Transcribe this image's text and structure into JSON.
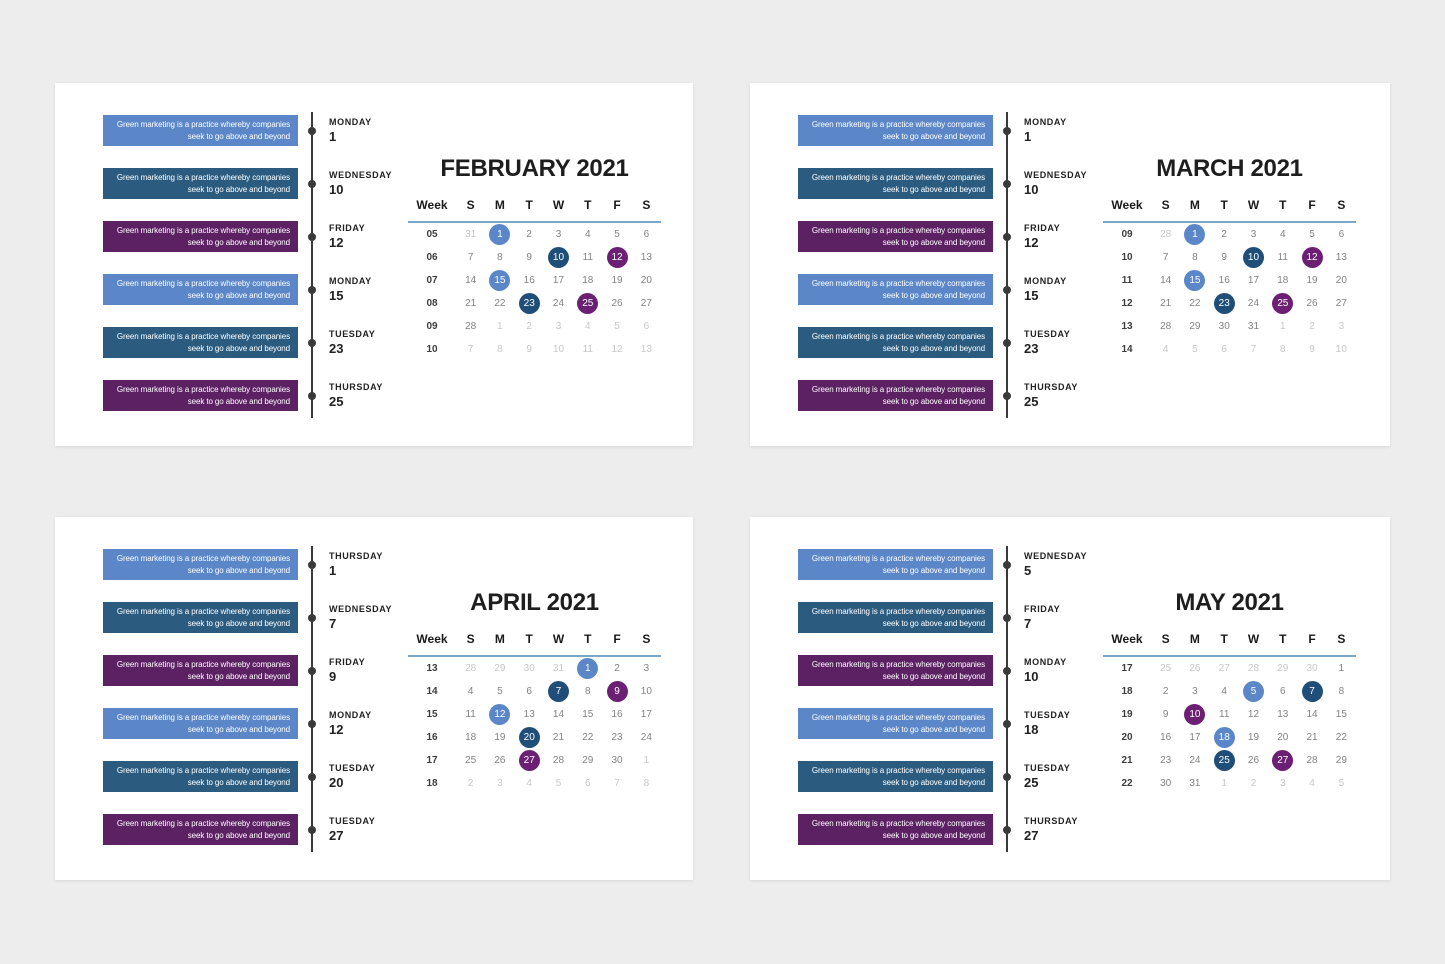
{
  "colors": {
    "light_blue": "#5b87c8",
    "dark_blue": "#2b5c80",
    "purple": "#5c2163",
    "circle_light_blue": "#5b87c8",
    "circle_dark_blue": "#1f4f78",
    "circle_purple": "#6b2073",
    "timeline": "#3a3a3a",
    "header_underline": "#7da7c9",
    "day_normal": "#828282",
    "day_faded": "#c7c7c7",
    "week_number": "#3d3d3d",
    "title_text": "#1e1e1e",
    "page_background": "#ededed",
    "card_background": "#ffffff"
  },
  "event_text": {
    "line1": "Green marketing is a practice whereby companies",
    "line2": "seek to go above and beyond"
  },
  "weekday_headers": [
    "Week",
    "S",
    "M",
    "T",
    "W",
    "T",
    "F",
    "S"
  ],
  "months": [
    {
      "title": "FEBRUARY 2021",
      "events": [
        {
          "day": "MONDAY",
          "date": "1",
          "color": "light_blue"
        },
        {
          "day": "WEDNESDAY",
          "date": "10",
          "color": "dark_blue"
        },
        {
          "day": "FRIDAY",
          "date": "12",
          "color": "purple"
        },
        {
          "day": "MONDAY",
          "date": "15",
          "color": "light_blue"
        },
        {
          "day": "TUESDAY",
          "date": "23",
          "color": "dark_blue"
        },
        {
          "day": "THURSDAY",
          "date": "25",
          "color": "purple"
        }
      ],
      "weeks": [
        {
          "num": "05",
          "days": [
            {
              "t": "31",
              "f": 1
            },
            {
              "t": "1",
              "hl": "light_blue"
            },
            {
              "t": "2"
            },
            {
              "t": "3"
            },
            {
              "t": "4"
            },
            {
              "t": "5"
            },
            {
              "t": "6"
            }
          ]
        },
        {
          "num": "06",
          "days": [
            {
              "t": "7"
            },
            {
              "t": "8"
            },
            {
              "t": "9"
            },
            {
              "t": "10",
              "hl": "dark_blue"
            },
            {
              "t": "11"
            },
            {
              "t": "12",
              "hl": "purple"
            },
            {
              "t": "13"
            }
          ]
        },
        {
          "num": "07",
          "days": [
            {
              "t": "14"
            },
            {
              "t": "15",
              "hl": "light_blue"
            },
            {
              "t": "16"
            },
            {
              "t": "17"
            },
            {
              "t": "18"
            },
            {
              "t": "19"
            },
            {
              "t": "20"
            }
          ]
        },
        {
          "num": "08",
          "days": [
            {
              "t": "21"
            },
            {
              "t": "22"
            },
            {
              "t": "23",
              "hl": "dark_blue"
            },
            {
              "t": "24"
            },
            {
              "t": "25",
              "hl": "purple"
            },
            {
              "t": "26"
            },
            {
              "t": "27"
            }
          ]
        },
        {
          "num": "09",
          "days": [
            {
              "t": "28"
            },
            {
              "t": "1",
              "f": 1
            },
            {
              "t": "2",
              "f": 1
            },
            {
              "t": "3",
              "f": 1
            },
            {
              "t": "4",
              "f": 1
            },
            {
              "t": "5",
              "f": 1
            },
            {
              "t": "6",
              "f": 1
            }
          ]
        },
        {
          "num": "10",
          "days": [
            {
              "t": "7",
              "f": 1
            },
            {
              "t": "8",
              "f": 1
            },
            {
              "t": "9",
              "f": 1
            },
            {
              "t": "10",
              "f": 1
            },
            {
              "t": "11",
              "f": 1
            },
            {
              "t": "12",
              "f": 1
            },
            {
              "t": "13",
              "f": 1
            }
          ]
        }
      ]
    },
    {
      "title": "MARCH 2021",
      "events": [
        {
          "day": "MONDAY",
          "date": "1",
          "color": "light_blue"
        },
        {
          "day": "WEDNESDAY",
          "date": "10",
          "color": "dark_blue"
        },
        {
          "day": "FRIDAY",
          "date": "12",
          "color": "purple"
        },
        {
          "day": "MONDAY",
          "date": "15",
          "color": "light_blue"
        },
        {
          "day": "TUESDAY",
          "date": "23",
          "color": "dark_blue"
        },
        {
          "day": "THURSDAY",
          "date": "25",
          "color": "purple"
        }
      ],
      "weeks": [
        {
          "num": "09",
          "days": [
            {
              "t": "28",
              "f": 1
            },
            {
              "t": "1",
              "hl": "light_blue"
            },
            {
              "t": "2"
            },
            {
              "t": "3"
            },
            {
              "t": "4"
            },
            {
              "t": "5"
            },
            {
              "t": "6"
            }
          ]
        },
        {
          "num": "10",
          "days": [
            {
              "t": "7"
            },
            {
              "t": "8"
            },
            {
              "t": "9"
            },
            {
              "t": "10",
              "hl": "dark_blue"
            },
            {
              "t": "11"
            },
            {
              "t": "12",
              "hl": "purple"
            },
            {
              "t": "13"
            }
          ]
        },
        {
          "num": "11",
          "days": [
            {
              "t": "14"
            },
            {
              "t": "15",
              "hl": "light_blue"
            },
            {
              "t": "16"
            },
            {
              "t": "17"
            },
            {
              "t": "18"
            },
            {
              "t": "19"
            },
            {
              "t": "20"
            }
          ]
        },
        {
          "num": "12",
          "days": [
            {
              "t": "21"
            },
            {
              "t": "22"
            },
            {
              "t": "23",
              "hl": "dark_blue"
            },
            {
              "t": "24"
            },
            {
              "t": "25",
              "hl": "purple"
            },
            {
              "t": "26"
            },
            {
              "t": "27"
            }
          ]
        },
        {
          "num": "13",
          "days": [
            {
              "t": "28"
            },
            {
              "t": "29"
            },
            {
              "t": "30"
            },
            {
              "t": "31"
            },
            {
              "t": "1",
              "f": 1
            },
            {
              "t": "2",
              "f": 1
            },
            {
              "t": "3",
              "f": 1
            }
          ]
        },
        {
          "num": "14",
          "days": [
            {
              "t": "4",
              "f": 1
            },
            {
              "t": "5",
              "f": 1
            },
            {
              "t": "6",
              "f": 1
            },
            {
              "t": "7",
              "f": 1
            },
            {
              "t": "8",
              "f": 1
            },
            {
              "t": "9",
              "f": 1
            },
            {
              "t": "10",
              "f": 1
            }
          ]
        }
      ]
    },
    {
      "title": "APRIL 2021",
      "events": [
        {
          "day": "THURSDAY",
          "date": "1",
          "color": "light_blue"
        },
        {
          "day": "WEDNESDAY",
          "date": "7",
          "color": "dark_blue"
        },
        {
          "day": "FRIDAY",
          "date": "9",
          "color": "purple"
        },
        {
          "day": "MONDAY",
          "date": "12",
          "color": "light_blue"
        },
        {
          "day": "TUESDAY",
          "date": "20",
          "color": "dark_blue"
        },
        {
          "day": "TUESDAY",
          "date": "27",
          "color": "purple"
        }
      ],
      "weeks": [
        {
          "num": "13",
          "days": [
            {
              "t": "28",
              "f": 1
            },
            {
              "t": "29",
              "f": 1
            },
            {
              "t": "30",
              "f": 1
            },
            {
              "t": "31",
              "f": 1
            },
            {
              "t": "1",
              "hl": "light_blue"
            },
            {
              "t": "2"
            },
            {
              "t": "3"
            }
          ]
        },
        {
          "num": "14",
          "days": [
            {
              "t": "4"
            },
            {
              "t": "5"
            },
            {
              "t": "6"
            },
            {
              "t": "7",
              "hl": "dark_blue"
            },
            {
              "t": "8"
            },
            {
              "t": "9",
              "hl": "purple"
            },
            {
              "t": "10"
            }
          ]
        },
        {
          "num": "15",
          "days": [
            {
              "t": "11"
            },
            {
              "t": "12",
              "hl": "light_blue"
            },
            {
              "t": "13"
            },
            {
              "t": "14"
            },
            {
              "t": "15"
            },
            {
              "t": "16"
            },
            {
              "t": "17"
            }
          ]
        },
        {
          "num": "16",
          "days": [
            {
              "t": "18"
            },
            {
              "t": "19"
            },
            {
              "t": "20",
              "hl": "dark_blue"
            },
            {
              "t": "21"
            },
            {
              "t": "22"
            },
            {
              "t": "23"
            },
            {
              "t": "24"
            }
          ]
        },
        {
          "num": "17",
          "days": [
            {
              "t": "25"
            },
            {
              "t": "26"
            },
            {
              "t": "27",
              "hl": "purple"
            },
            {
              "t": "28"
            },
            {
              "t": "29"
            },
            {
              "t": "30"
            },
            {
              "t": "1",
              "f": 1
            }
          ]
        },
        {
          "num": "18",
          "days": [
            {
              "t": "2",
              "f": 1
            },
            {
              "t": "3",
              "f": 1
            },
            {
              "t": "4",
              "f": 1
            },
            {
              "t": "5",
              "f": 1
            },
            {
              "t": "6",
              "f": 1
            },
            {
              "t": "7",
              "f": 1
            },
            {
              "t": "8",
              "f": 1
            }
          ]
        }
      ]
    },
    {
      "title": "MAY 2021",
      "events": [
        {
          "day": "WEDNESDAY",
          "date": "5",
          "color": "light_blue"
        },
        {
          "day": "FRIDAY",
          "date": "7",
          "color": "dark_blue"
        },
        {
          "day": "MONDAY",
          "date": "10",
          "color": "purple"
        },
        {
          "day": "TUESDAY",
          "date": "18",
          "color": "light_blue"
        },
        {
          "day": "TUESDAY",
          "date": "25",
          "color": "dark_blue"
        },
        {
          "day": "THURSDAY",
          "date": "27",
          "color": "purple"
        }
      ],
      "weeks": [
        {
          "num": "17",
          "days": [
            {
              "t": "25",
              "f": 1
            },
            {
              "t": "26",
              "f": 1
            },
            {
              "t": "27",
              "f": 1
            },
            {
              "t": "28",
              "f": 1
            },
            {
              "t": "29",
              "f": 1
            },
            {
              "t": "30",
              "f": 1
            },
            {
              "t": "1"
            }
          ]
        },
        {
          "num": "18",
          "days": [
            {
              "t": "2"
            },
            {
              "t": "3"
            },
            {
              "t": "4"
            },
            {
              "t": "5",
              "hl": "light_blue"
            },
            {
              "t": "6"
            },
            {
              "t": "7",
              "hl": "dark_blue"
            },
            {
              "t": "8"
            }
          ]
        },
        {
          "num": "19",
          "days": [
            {
              "t": "9"
            },
            {
              "t": "10",
              "hl": "purple"
            },
            {
              "t": "11"
            },
            {
              "t": "12"
            },
            {
              "t": "13"
            },
            {
              "t": "14"
            },
            {
              "t": "15"
            }
          ]
        },
        {
          "num": "20",
          "days": [
            {
              "t": "16"
            },
            {
              "t": "17"
            },
            {
              "t": "18",
              "hl": "light_blue"
            },
            {
              "t": "19"
            },
            {
              "t": "20"
            },
            {
              "t": "21"
            },
            {
              "t": "22"
            }
          ]
        },
        {
          "num": "21",
          "days": [
            {
              "t": "23"
            },
            {
              "t": "24"
            },
            {
              "t": "25",
              "hl": "dark_blue"
            },
            {
              "t": "26"
            },
            {
              "t": "27",
              "hl": "purple"
            },
            {
              "t": "28"
            },
            {
              "t": "29"
            }
          ]
        },
        {
          "num": "22",
          "days": [
            {
              "t": "30"
            },
            {
              "t": "31"
            },
            {
              "t": "1",
              "f": 1
            },
            {
              "t": "2",
              "f": 1
            },
            {
              "t": "3",
              "f": 1
            },
            {
              "t": "4",
              "f": 1
            },
            {
              "t": "5",
              "f": 1
            }
          ]
        }
      ]
    }
  ]
}
